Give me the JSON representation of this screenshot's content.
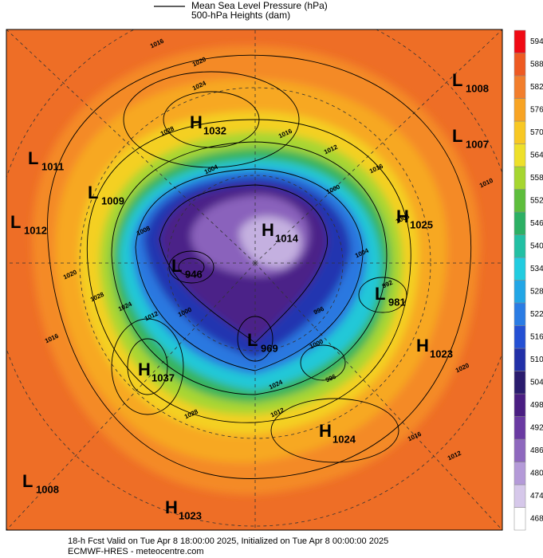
{
  "legend": {
    "items": [
      "Mean Sea Level Pressure (hPa)",
      "500-hPa Heights (dam)"
    ]
  },
  "colorbar": {
    "levels": [
      468,
      474,
      480,
      486,
      492,
      498,
      504,
      510,
      516,
      522,
      528,
      534,
      540,
      546,
      552,
      558,
      564,
      570,
      576,
      582,
      588,
      594
    ],
    "colors": [
      "#ffffff",
      "#d6c8ea",
      "#b49ad8",
      "#8e68be",
      "#6a3aa2",
      "#4a1e82",
      "#2a1c6e",
      "#2230a8",
      "#2450d4",
      "#2a7ce4",
      "#22a6e6",
      "#22cce0",
      "#22c0a4",
      "#2cb064",
      "#5ebe3c",
      "#a6d630",
      "#eee02a",
      "#f8c824",
      "#f8a424",
      "#f27e2c",
      "#ee5a22",
      "#f00a14"
    ]
  },
  "pressure_centers": [
    {
      "type": "L",
      "value": 1008
    },
    {
      "type": "L",
      "value": 1007
    },
    {
      "type": "H",
      "value": 1032
    },
    {
      "type": "L",
      "value": 1011
    },
    {
      "type": "L",
      "value": 1009
    },
    {
      "type": "L",
      "value": 1012
    },
    {
      "type": "H",
      "value": 1025
    },
    {
      "type": "H",
      "value": 1014
    },
    {
      "type": "L",
      "value": 946
    },
    {
      "type": "L",
      "value": 981
    },
    {
      "type": "L",
      "value": 969
    },
    {
      "type": "H",
      "value": 1023
    },
    {
      "type": "H",
      "value": 1037
    },
    {
      "type": "H",
      "value": 1024
    },
    {
      "type": "L",
      "value": 1008
    },
    {
      "type": "H",
      "value": 1023
    }
  ],
  "isobar_labels": [
    1016,
    1020,
    1024,
    1028,
    1016,
    1012,
    1016,
    1004,
    1000,
    1008,
    1004,
    1008,
    1020,
    1028,
    1024,
    1012,
    1000,
    1016,
    992,
    996,
    1000,
    996,
    1024,
    1012,
    1020,
    1016,
    1012,
    1028,
    1010
  ],
  "footer": {
    "line1": "18-h Fcst Valid on Tue Apr  8 18:00:00 2025, Initialized on Tue Apr  8 00:00:00 2025",
    "line2": "ECMWF-HRES  - meteocentre.com"
  }
}
